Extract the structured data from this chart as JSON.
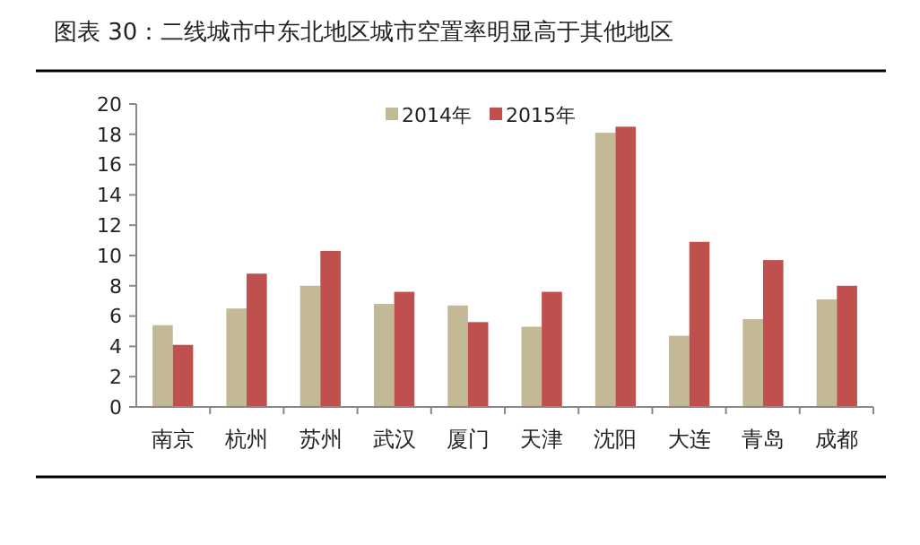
{
  "chart_data": {
    "type": "bar",
    "title": "图表 30：二线城市中东北地区城市空置率明显高于其他地区",
    "categories": [
      "南京",
      "杭州",
      "苏州",
      "武汉",
      "厦门",
      "天津",
      "沈阳",
      "大连",
      "青岛",
      "成都"
    ],
    "series": [
      {
        "name": "2014年",
        "color": "#c4b996",
        "values": [
          5.4,
          6.5,
          8.0,
          6.8,
          6.7,
          5.3,
          18.1,
          4.7,
          5.8,
          7.1
        ]
      },
      {
        "name": "2015年",
        "color": "#c0504d",
        "values": [
          4.1,
          8.8,
          10.3,
          7.6,
          5.6,
          7.6,
          18.5,
          10.9,
          9.7,
          8.0
        ]
      }
    ],
    "ylim": [
      0,
      20
    ],
    "yticks": [
      0,
      2,
      4,
      6,
      8,
      10,
      12,
      14,
      16,
      18,
      20
    ],
    "legend": "top"
  }
}
